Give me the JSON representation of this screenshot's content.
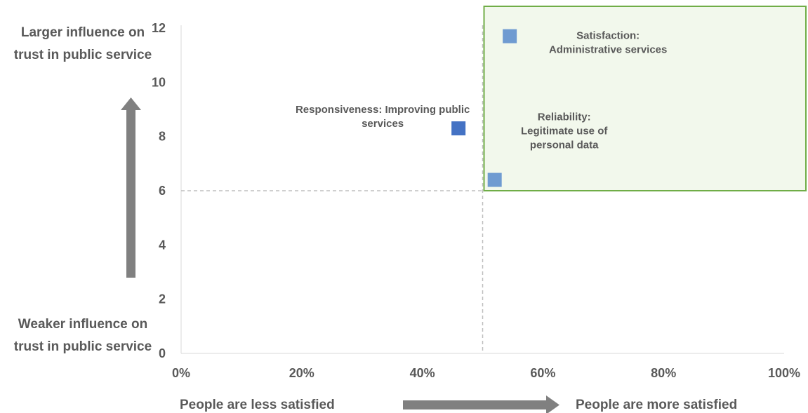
{
  "chart_data": {
    "type": "scatter",
    "xlim": [
      0,
      100
    ],
    "ylim": [
      0,
      12
    ],
    "x_ticks": [
      "0%",
      "20%",
      "40%",
      "60%",
      "80%",
      "100%"
    ],
    "y_ticks": [
      "0",
      "2",
      "4",
      "6",
      "8",
      "10",
      "12"
    ],
    "x_tick_values": [
      0,
      20,
      40,
      60,
      80,
      100
    ],
    "y_tick_values": [
      0,
      2,
      4,
      6,
      8,
      10,
      12
    ],
    "reference_lines": {
      "x": 50,
      "y": 6
    },
    "highlight_region": {
      "x": [
        50,
        100
      ],
      "y": [
        6,
        12
      ],
      "color": "#f2f8ec",
      "border": "#70ad47"
    },
    "points": [
      {
        "x": 54.5,
        "y": 11.7,
        "label": "Satisfaction:\nAdministrative services",
        "color": "#6f9bd1"
      },
      {
        "x": 46,
        "y": 8.3,
        "label": "Responsiveness: Improving public\nservices",
        "color": "#4472c4"
      },
      {
        "x": 52,
        "y": 6.4,
        "label": "Reliability:\nLegitimate use of\npersonal data",
        "color": "#6f9bd1"
      }
    ],
    "y_top_note": "Larger influence on\ntrust in public service",
    "y_bottom_note": "Weaker influence on\ntrust in public service",
    "x_left_note": "People are less satisfied",
    "x_right_note": "People are more satisfied",
    "arrow_color": "#808080"
  }
}
